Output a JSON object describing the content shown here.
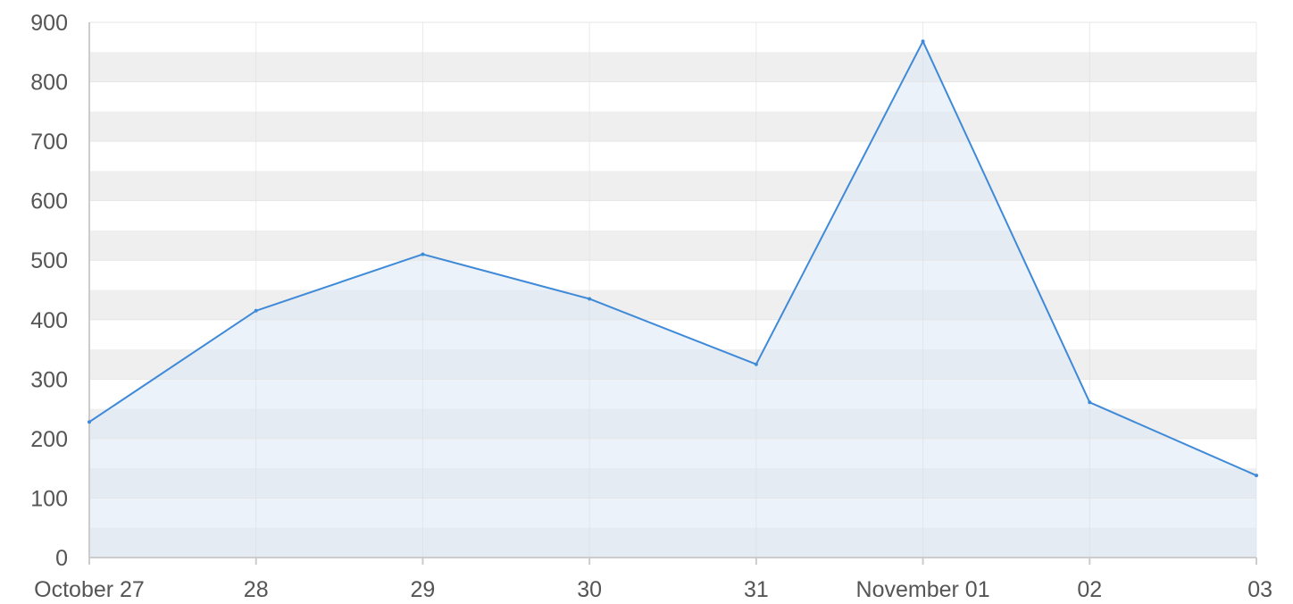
{
  "chart_data": {
    "type": "area",
    "title": "",
    "xlabel": "",
    "ylabel": "",
    "x": [
      "October 27",
      "28",
      "29",
      "30",
      "31",
      "November 01",
      "02",
      "03"
    ],
    "series": [
      {
        "values": [
          228,
          415,
          510,
          435,
          325,
          868,
          261,
          138
        ]
      }
    ],
    "ylim": [
      0,
      900
    ],
    "yticks": [
      "0",
      "100",
      "200",
      "300",
      "400",
      "500",
      "600",
      "700",
      "800",
      "900"
    ],
    "grid": "alternating horizontal bands",
    "legend": "none",
    "colors": {
      "line": "#3f8ad8",
      "area_fill": "#dce8f4",
      "band": "#efefef",
      "axis": "#cccccc",
      "text": "#555555"
    }
  }
}
